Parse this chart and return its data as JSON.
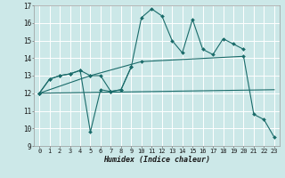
{
  "title": "",
  "xlabel": "Humidex (Indice chaleur)",
  "xlim": [
    -0.5,
    23.5
  ],
  "ylim": [
    9,
    17
  ],
  "yticks": [
    9,
    10,
    11,
    12,
    13,
    14,
    15,
    16,
    17
  ],
  "xticks": [
    0,
    1,
    2,
    3,
    4,
    5,
    6,
    7,
    8,
    9,
    10,
    11,
    12,
    13,
    14,
    15,
    16,
    17,
    18,
    19,
    20,
    21,
    22,
    23
  ],
  "background_color": "#cce8e8",
  "line_color": "#1a6b6a",
  "grid_color": "#ffffff",
  "lines": [
    {
      "x": [
        0,
        1,
        2,
        3,
        4,
        5,
        6,
        7,
        8,
        9,
        10,
        11,
        12,
        13,
        14,
        15,
        16,
        17,
        18,
        19,
        20
      ],
      "y": [
        12.0,
        12.8,
        13.0,
        13.1,
        13.3,
        13.0,
        13.0,
        12.1,
        12.2,
        13.5,
        16.3,
        16.8,
        16.4,
        15.0,
        14.3,
        16.2,
        14.5,
        14.2,
        15.1,
        14.8,
        14.5
      ],
      "marker": "D",
      "markersize": 2.0,
      "linewidth": 0.8,
      "has_marker": true
    },
    {
      "x": [
        0,
        1,
        2,
        3,
        4,
        5,
        6,
        7,
        8,
        9
      ],
      "y": [
        12.0,
        12.8,
        13.0,
        13.1,
        13.3,
        9.8,
        12.2,
        12.1,
        12.2,
        13.5
      ],
      "marker": "D",
      "markersize": 2.0,
      "linewidth": 0.8,
      "has_marker": true
    },
    {
      "x": [
        0,
        23
      ],
      "y": [
        12.0,
        12.2
      ],
      "marker": null,
      "markersize": 0,
      "linewidth": 0.8,
      "has_marker": false
    },
    {
      "x": [
        0,
        5,
        10,
        20,
        21,
        22,
        23
      ],
      "y": [
        12.0,
        13.0,
        13.8,
        14.1,
        10.8,
        10.5,
        9.5
      ],
      "marker": "D",
      "markersize": 2.0,
      "linewidth": 0.8,
      "has_marker": true
    }
  ],
  "xlabel_fontsize": 6,
  "tick_fontsize": 5,
  "ytick_fontsize": 5.5
}
